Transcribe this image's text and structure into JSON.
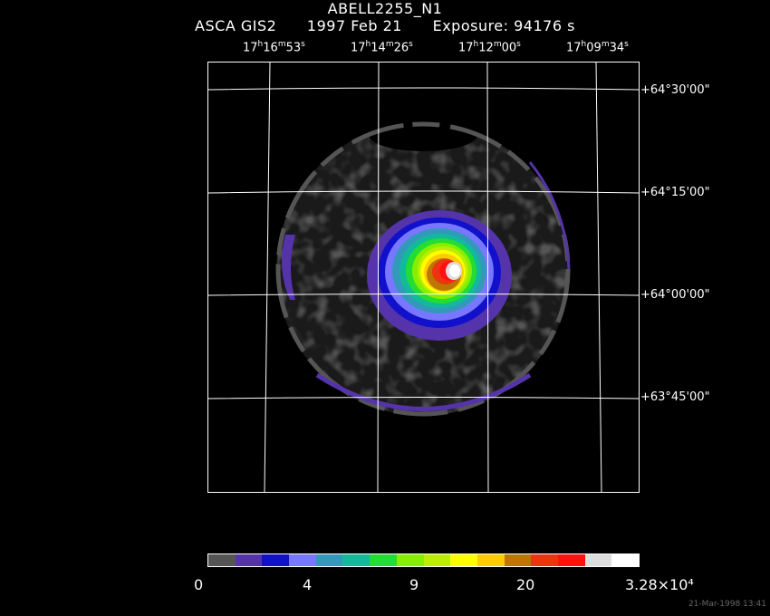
{
  "header": {
    "object": "ABELL2255_N1",
    "instrument": "ASCA GIS2",
    "date": "1997 Feb 21",
    "exposure": "Exposure: 94176 s"
  },
  "ra_ticks": [
    {
      "h": "17",
      "m": "16",
      "s": "53"
    },
    {
      "h": "17",
      "m": "14",
      "s": "26"
    },
    {
      "h": "17",
      "m": "12",
      "s": "00"
    },
    {
      "h": "17",
      "m": "09",
      "s": "34"
    }
  ],
  "dec_ticks": [
    "+64°30'00\"",
    "+64°15'00\"",
    "+64°00'00\"",
    "+63°45'00\""
  ],
  "colorbar": {
    "colors": [
      "#555555",
      "#5533aa",
      "#1111cc",
      "#7777ff",
      "#3399bb",
      "#11bb99",
      "#22dd33",
      "#88ee00",
      "#bbee00",
      "#ffff00",
      "#ffcc00",
      "#bb7700",
      "#ee3311",
      "#ff1111",
      "#dddddd",
      "#ffffff"
    ],
    "labels": [
      "0",
      "4",
      "9",
      "20",
      "3.28×10⁴"
    ]
  },
  "timestamp": "21-Mar-1998 13:41"
}
